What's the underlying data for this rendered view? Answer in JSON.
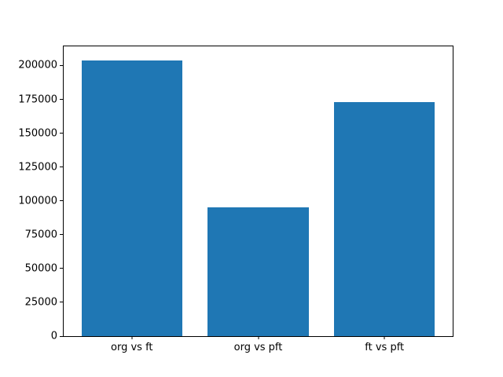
{
  "chart_data": {
    "type": "bar",
    "title": "",
    "xlabel": "",
    "ylabel": "",
    "categories": [
      "org vs ft",
      "org vs pft",
      "ft vs pft"
    ],
    "values": [
      204000,
      95000,
      173000
    ],
    "yticks": [
      0,
      25000,
      50000,
      75000,
      100000,
      125000,
      150000,
      175000,
      200000
    ],
    "ytick_labels": [
      "0",
      "25000",
      "50000",
      "75000",
      "100000",
      "125000",
      "150000",
      "175000",
      "200000"
    ],
    "ylim": [
      0,
      214200
    ],
    "xlim": [
      -0.54,
      2.54
    ],
    "bar_width_units": 0.8,
    "bar_color": "#1f77b4",
    "spine_color": "#000000",
    "text_color": "#000000",
    "background_color": "#ffffff",
    "grid": false,
    "legend": null
  }
}
